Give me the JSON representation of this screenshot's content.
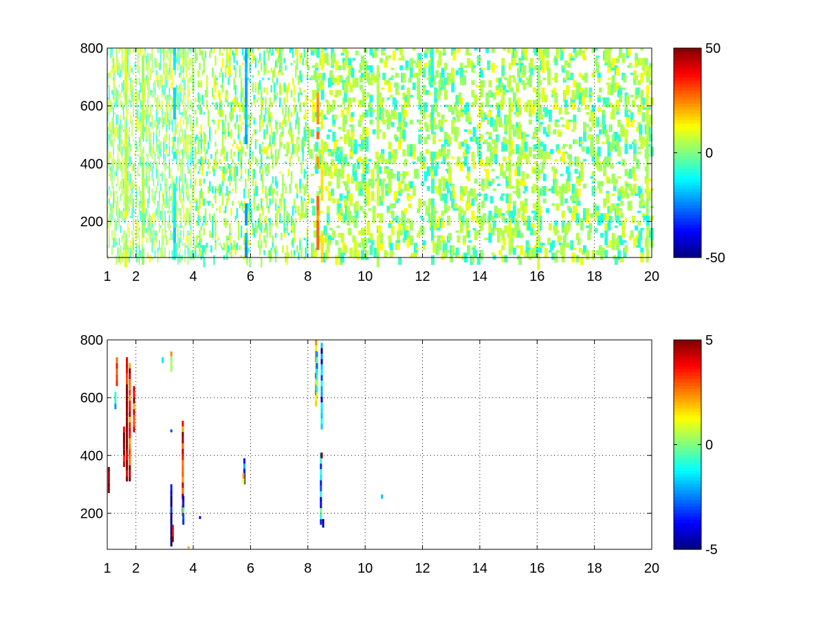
{
  "chart_data": [
    {
      "type": "heatmap",
      "title": "",
      "xlabel": "",
      "ylabel": "",
      "xlim": [
        1,
        20
      ],
      "ylim": [
        75,
        800
      ],
      "x_ticks": [
        1,
        2,
        4,
        6,
        8,
        10,
        12,
        14,
        16,
        18,
        20
      ],
      "y_ticks": [
        200,
        400,
        600,
        800
      ],
      "grid": true,
      "colormap": "jet",
      "colorbar": {
        "limits": [
          -50,
          50
        ],
        "ticks": [
          50,
          0,
          -50
        ],
        "tick_labels": [
          "50",
          "0",
          "-50"
        ]
      },
      "cells_description_values": {
        "dense_columns": [
          {
            "x": 1.6,
            "v": 8
          },
          {
            "x": 2.2,
            "v": 4
          },
          {
            "x": 3.3,
            "v": -14
          },
          {
            "x": 5.8,
            "v": -20
          },
          {
            "x": 8.3,
            "v": 25
          },
          {
            "x": 8.45,
            "v": 12
          },
          {
            "x": 10.4,
            "v": 6
          },
          {
            "x": 12.3,
            "v": -6
          },
          {
            "x": 15.0,
            "v": 6
          },
          {
            "x": 16.0,
            "v": 5
          },
          {
            "x": 19.8,
            "v": 6
          }
        ],
        "typical_values": [
          -8,
          4,
          7
        ]
      }
    },
    {
      "type": "heatmap",
      "title": "",
      "xlabel": "",
      "ylabel": "",
      "xlim": [
        1,
        20
      ],
      "ylim": [
        75,
        800
      ],
      "x_ticks": [
        1,
        2,
        4,
        6,
        8,
        10,
        12,
        14,
        16,
        18,
        20
      ],
      "y_ticks": [
        200,
        400,
        600,
        800
      ],
      "grid": true,
      "colormap": "jet",
      "colorbar": {
        "limits": [
          -5,
          5
        ],
        "ticks": [
          5,
          0,
          -5
        ],
        "tick_labels": [
          "5",
          "0",
          "-5"
        ]
      },
      "segments": [
        {
          "x": 1.02,
          "y0": 270,
          "y1": 360,
          "v": 5
        },
        {
          "x": 1.25,
          "y0": 560,
          "y1": 620,
          "v": -2
        },
        {
          "x": 1.3,
          "y0": 640,
          "y1": 740,
          "v": 4
        },
        {
          "x": 1.55,
          "y0": 360,
          "y1": 500,
          "v": 5
        },
        {
          "x": 1.65,
          "y0": 310,
          "y1": 740,
          "v": 5
        },
        {
          "x": 1.75,
          "y0": 310,
          "y1": 720,
          "v": 4
        },
        {
          "x": 1.9,
          "y0": 480,
          "y1": 640,
          "v": 3
        },
        {
          "x": 2.9,
          "y0": 720,
          "y1": 740,
          "v": -1
        },
        {
          "x": 3.2,
          "y0": 85,
          "y1": 300,
          "v": -5
        },
        {
          "x": 3.25,
          "y0": 100,
          "y1": 160,
          "v": 5
        },
        {
          "x": 3.2,
          "y0": 690,
          "y1": 760,
          "v": 2
        },
        {
          "x": 3.2,
          "y0": 480,
          "y1": 490,
          "v": -5
        },
        {
          "x": 3.6,
          "y0": 190,
          "y1": 520,
          "v": 4
        },
        {
          "x": 3.62,
          "y0": 160,
          "y1": 260,
          "v": -2
        },
        {
          "x": 3.8,
          "y0": 78,
          "y1": 85,
          "v": 2
        },
        {
          "x": 4.2,
          "y0": 180,
          "y1": 190,
          "v": -3
        },
        {
          "x": 5.75,
          "y0": 300,
          "y1": 390,
          "v": -4
        },
        {
          "x": 5.72,
          "y0": 300,
          "y1": 340,
          "v": 3
        },
        {
          "x": 8.25,
          "y0": 570,
          "y1": 800,
          "v": 2
        },
        {
          "x": 8.28,
          "y0": 600,
          "y1": 760,
          "v": -1
        },
        {
          "x": 8.42,
          "y0": 160,
          "y1": 410,
          "v": -2
        },
        {
          "x": 8.45,
          "y0": 490,
          "y1": 790,
          "v": -3
        },
        {
          "x": 8.5,
          "y0": 150,
          "y1": 180,
          "v": -5
        },
        {
          "x": 8.45,
          "y0": 390,
          "y1": 410,
          "v": 4
        },
        {
          "x": 10.55,
          "y0": 250,
          "y1": 265,
          "v": -2
        }
      ]
    }
  ]
}
